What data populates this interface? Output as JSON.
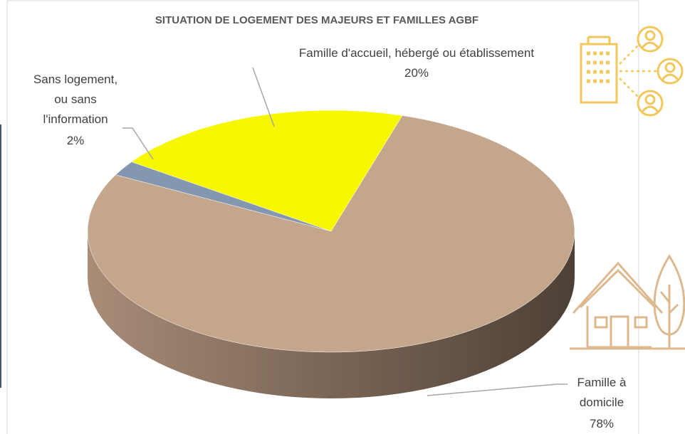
{
  "chart_data": {
    "type": "pie",
    "title": "SITUATION DE LOGEMENT DES MAJEURS ET FAMILLES AGBF",
    "categories": [
      "Famille à domicile",
      "Sans logement, ou sans l'information",
      "Famille d'accueil, hébergé ou établissement"
    ],
    "values": [
      78,
      2,
      20
    ],
    "value_labels": [
      "78%",
      "2%",
      "20%"
    ],
    "colors": [
      "#c4a68c",
      "#8497b0",
      "#f7f700"
    ]
  }
}
